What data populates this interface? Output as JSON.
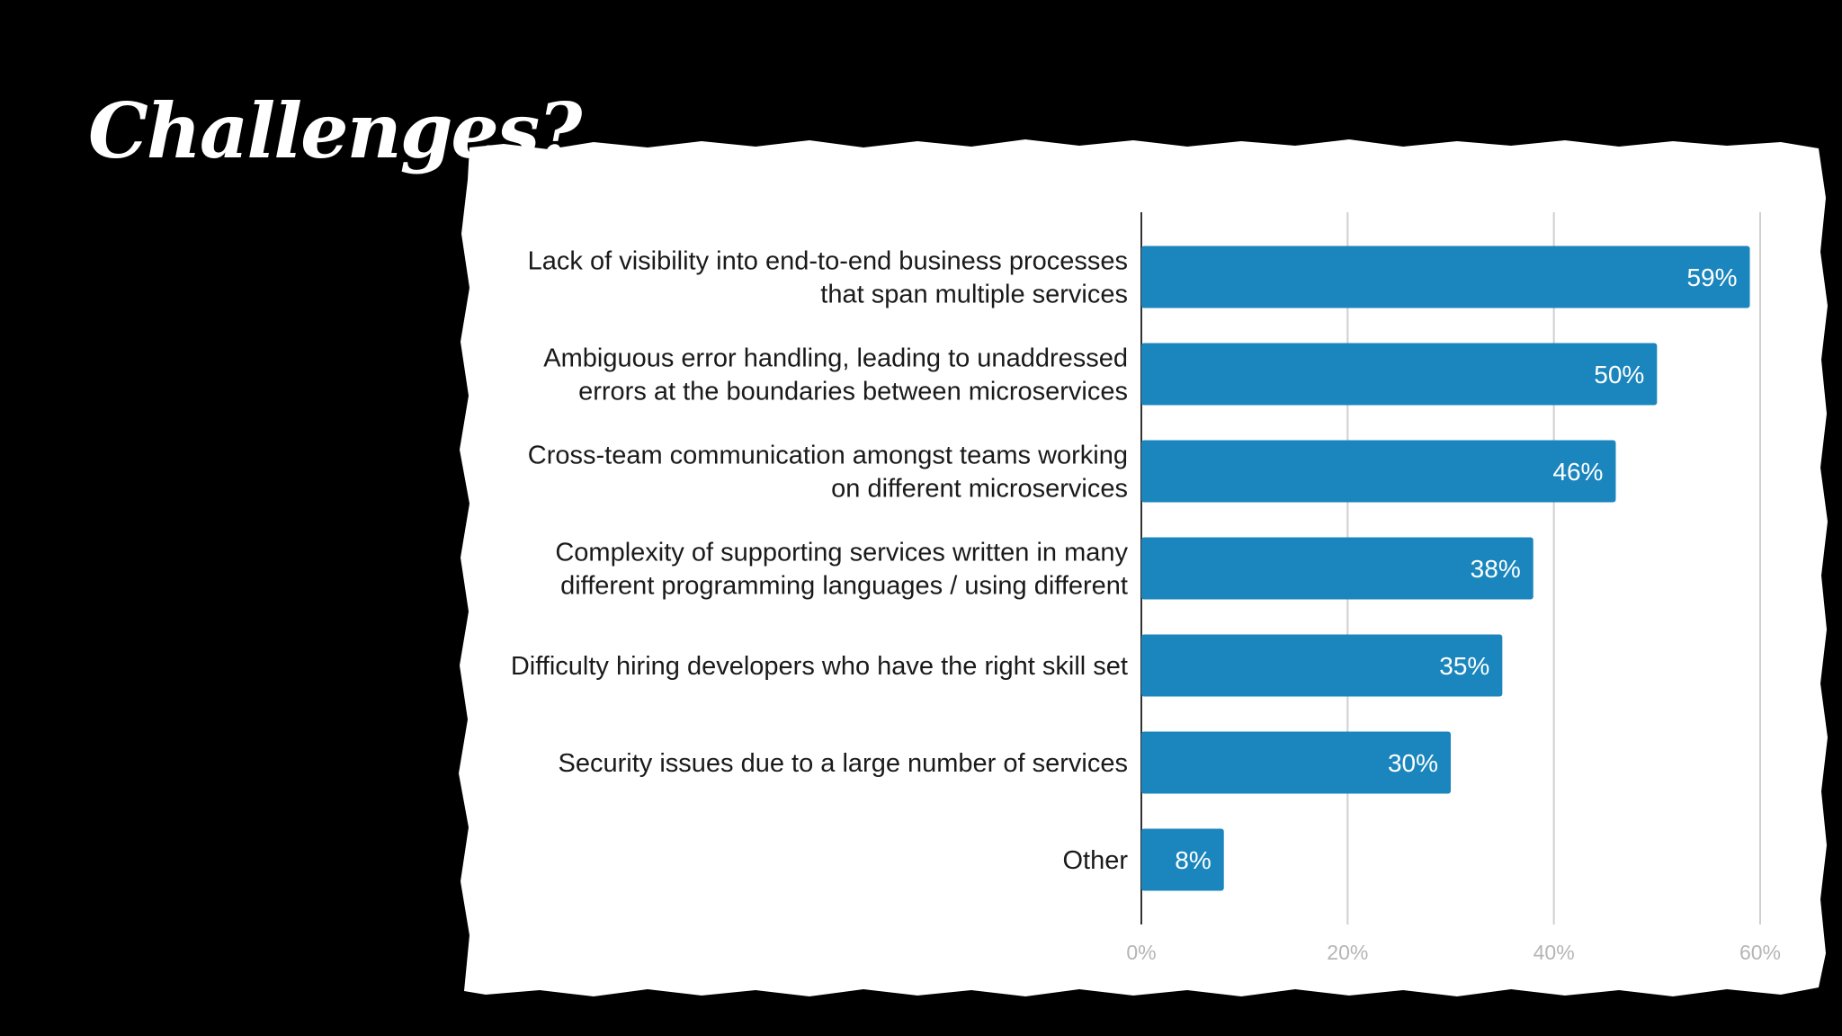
{
  "slide": {
    "title": "Challenges?"
  },
  "colors": {
    "background": "#000000",
    "card": "#ffffff",
    "bar": "#1a86bd",
    "grid": "#cfcfcf",
    "axis": "#333333"
  },
  "chart_data": {
    "type": "bar",
    "orientation": "horizontal",
    "title": "",
    "xlabel": "",
    "ylabel": "",
    "xlim": [
      0,
      60
    ],
    "ticks": [
      0,
      20,
      40,
      60
    ],
    "tick_labels": [
      "0%",
      "20%",
      "40%",
      "60%"
    ],
    "grid": true,
    "legend": "none",
    "categories": [
      [
        "Lack of visibility into end-to-end business processes",
        "that span multiple services"
      ],
      [
        "Ambiguous error handling, leading to unaddressed",
        "errors at the boundaries between microservices"
      ],
      [
        "Cross-team communication amongst teams working",
        "on different microservices"
      ],
      [
        "Complexity of supporting services written in many",
        "different programming languages / using different"
      ],
      [
        "Difficulty hiring developers who have the right skill set"
      ],
      [
        "Security issues due to a large number of services"
      ],
      [
        "Other"
      ]
    ],
    "values": [
      59,
      50,
      46,
      38,
      35,
      30,
      8
    ],
    "value_labels": [
      "59%",
      "50%",
      "46%",
      "38%",
      "35%",
      "30%",
      "8%"
    ]
  }
}
